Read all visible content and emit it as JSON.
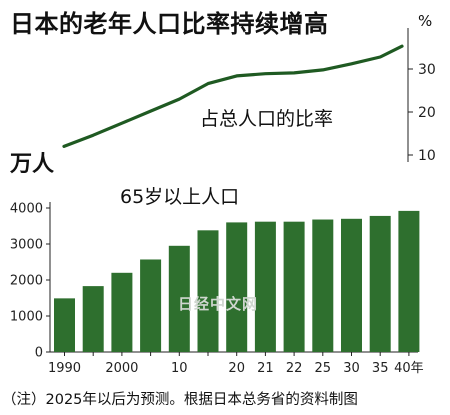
{
  "title": "日本的老年人口比率持续增高",
  "note": "（注）2025年以后为预测。根据日本总务省的资料制图",
  "watermark": "日经中文网",
  "colors": {
    "bar": "#2e6f2e",
    "line": "#1f5a22",
    "axis": "#222222"
  },
  "chart_data": [
    {
      "type": "line",
      "label": "占总人口的比率",
      "unit": "%",
      "x_tick_index": [
        0,
        1,
        2,
        3,
        4,
        5,
        6,
        7,
        8,
        9,
        10,
        11,
        12
      ],
      "values": [
        12.0,
        14.6,
        17.4,
        20.2,
        23.0,
        26.6,
        28.4,
        28.9,
        29.1,
        29.8,
        31.2,
        32.8,
        35.3
      ],
      "ylim": [
        10,
        35
      ],
      "yticks": [
        10,
        20,
        30
      ]
    },
    {
      "type": "bar",
      "label": "65岁以上人口",
      "unit": "万人",
      "categories": [
        "1990",
        "",
        "2000",
        "",
        "10",
        "",
        "20",
        "21",
        "22",
        "25",
        "30",
        "35",
        "40年"
      ],
      "values": [
        1490,
        1830,
        2200,
        2570,
        2950,
        3380,
        3600,
        3620,
        3620,
        3680,
        3700,
        3780,
        3920
      ],
      "ylim": [
        0,
        4000
      ],
      "yticks": [
        0,
        1000,
        2000,
        3000,
        4000
      ]
    }
  ]
}
